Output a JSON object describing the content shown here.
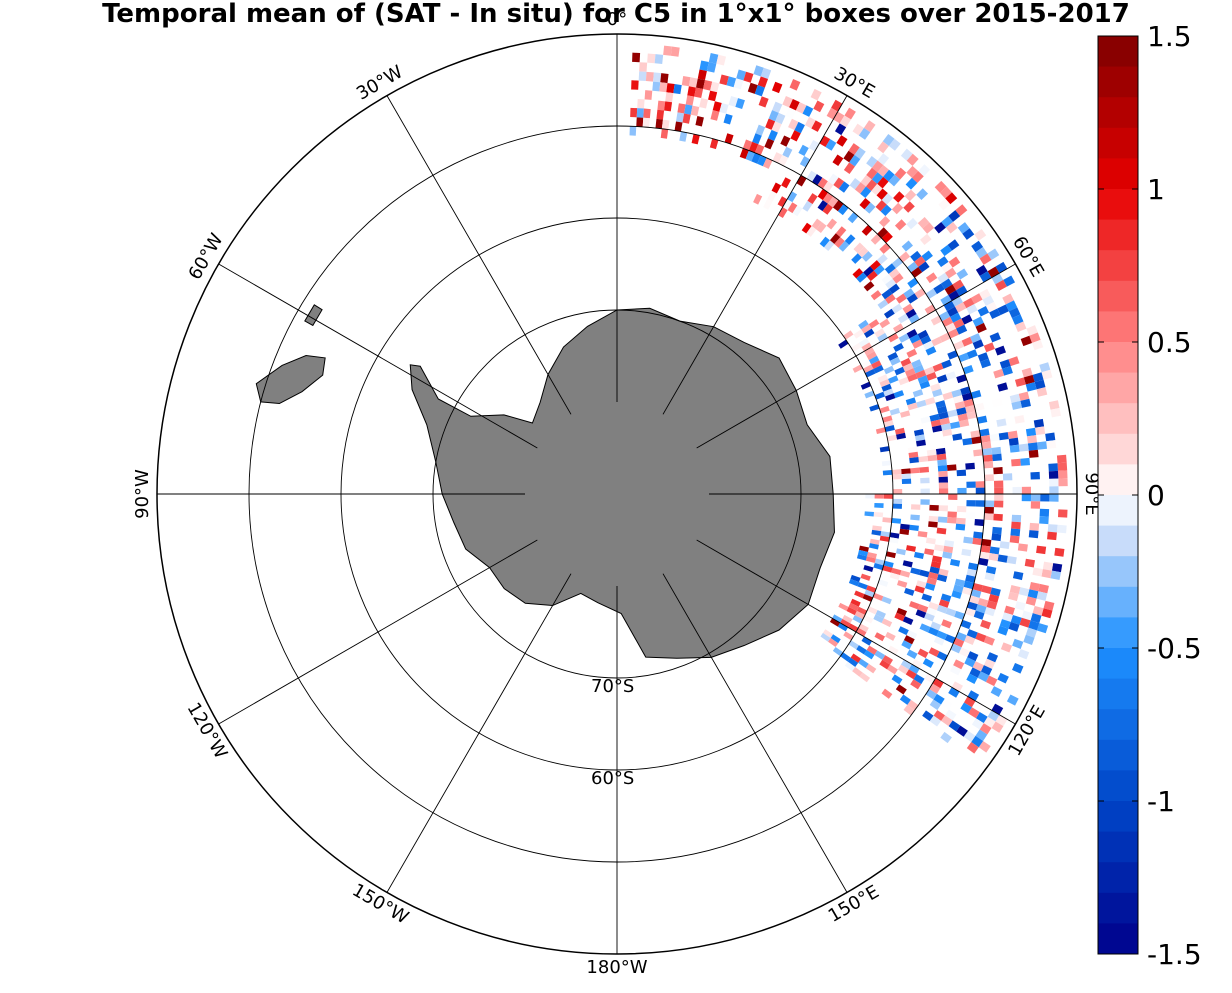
{
  "title": "Temporal mean of (SAT - In situ) for C5 in 1°x1° boxes over 2015-2017",
  "map": {
    "projection": "south polar stereographic",
    "land_color": "#808080",
    "ocean_color": "#ffffff",
    "latitude_labels": [
      {
        "text": "70°S",
        "lat": -70
      },
      {
        "text": "60°S",
        "lat": -60
      }
    ],
    "longitude_labels": [
      {
        "text": "0°",
        "lon": 0
      },
      {
        "text": "30°E",
        "lon": 30
      },
      {
        "text": "60°E",
        "lon": 60
      },
      {
        "text": "90°E",
        "lon": 90
      },
      {
        "text": "120°E",
        "lon": 120
      },
      {
        "text": "150°E",
        "lon": 150
      },
      {
        "text": "180°W",
        "lon": 180
      },
      {
        "text": "150°W",
        "lon": -150
      },
      {
        "text": "120°W",
        "lon": -120
      },
      {
        "text": "90°W",
        "lon": -90
      },
      {
        "text": "60°W",
        "lon": -60
      },
      {
        "text": "30°W",
        "lon": -30
      }
    ],
    "data_region": "1°x1° boxes with values, east of ~10°E to ~125°E, between ~45°S and ~65°S"
  },
  "colorbar": {
    "min": -1.5,
    "max": 1.5,
    "ticks": [
      "1.5",
      "1",
      "0.5",
      "0",
      "-0.5",
      "-1",
      "-1.5"
    ],
    "colors": {
      "neg_max": "#00008b",
      "neg_mid": "#1e90ff",
      "zero": "#ffffff",
      "pos_mid": "#ff4040",
      "pos_max": "#7f0000"
    }
  }
}
